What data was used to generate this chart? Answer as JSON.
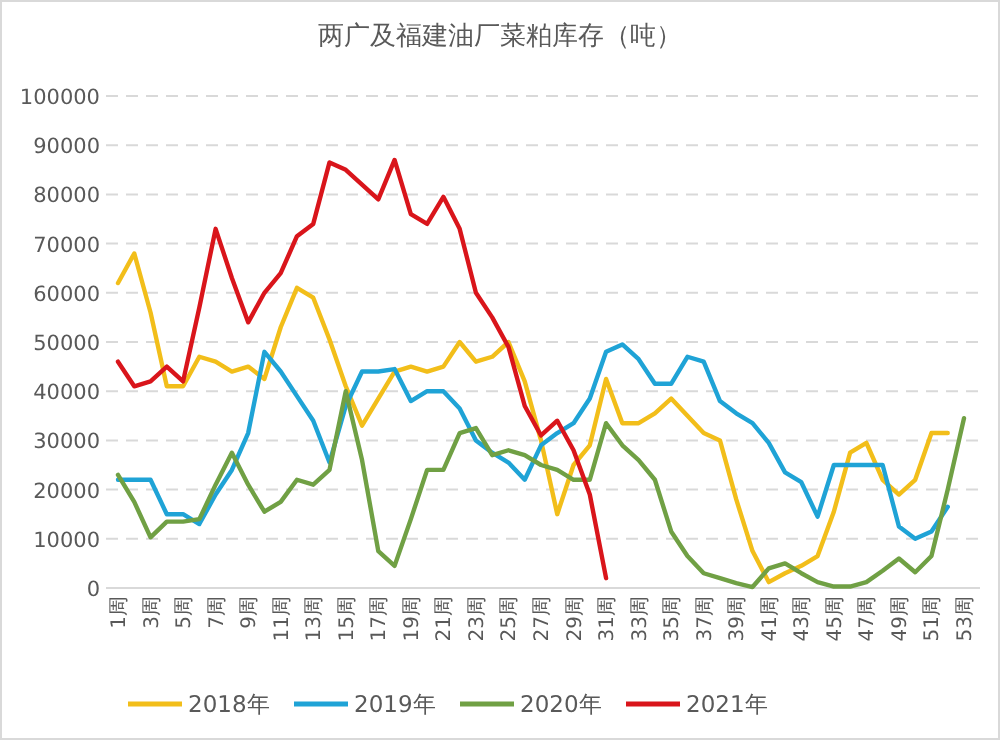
{
  "chart_data": {
    "type": "line",
    "title": "两广及福建油厂菜粕库存（吨）",
    "categories": [
      "1周",
      null,
      "3周",
      null,
      "5周",
      null,
      "7周",
      null,
      "9周",
      null,
      "11周",
      null,
      "13周",
      null,
      "15周",
      null,
      "17周",
      null,
      "19周",
      null,
      "21周",
      null,
      "23周",
      null,
      "25周",
      null,
      "27周",
      null,
      "29周",
      null,
      "31周",
      null,
      "33周",
      null,
      "35周",
      null,
      "37周",
      null,
      "39周",
      null,
      "41周",
      null,
      "43周",
      null,
      "45周",
      null,
      "47周",
      null,
      "49周",
      null,
      "51周",
      null,
      "53周"
    ],
    "ylim": [
      0,
      100000
    ],
    "yticks": [
      0,
      10000,
      20000,
      30000,
      40000,
      50000,
      60000,
      70000,
      80000,
      90000,
      100000
    ],
    "grid": "y",
    "legend": "bottom",
    "series": [
      {
        "name": "2018年",
        "color": "#f2be1a",
        "values": [
          62000,
          68000,
          56000,
          41000,
          41000,
          47000,
          46000,
          44000,
          45000,
          42500,
          53000,
          61000,
          59000,
          50500,
          41000,
          33000,
          38500,
          44000,
          45000,
          44000,
          45000,
          50000,
          46000,
          47000,
          50000,
          42000,
          30000,
          15000,
          25000,
          29000,
          42500,
          33500,
          33500,
          35500,
          38500,
          35000,
          31500,
          30000,
          18000,
          7500,
          1200,
          3000,
          4500,
          6500,
          15500,
          27500,
          29500,
          22000,
          19000,
          22000,
          31500,
          31500,
          null
        ]
      },
      {
        "name": "2019年",
        "color": "#1fa3d6",
        "values": [
          22000,
          22000,
          22000,
          15000,
          15000,
          13000,
          19000,
          24000,
          31500,
          48000,
          44000,
          39000,
          34000,
          25500,
          37000,
          44000,
          44000,
          44500,
          38000,
          40000,
          40000,
          36500,
          30000,
          27500,
          25500,
          22000,
          29000,
          31500,
          33500,
          38500,
          48000,
          49500,
          46500,
          41500,
          41500,
          47000,
          46000,
          38000,
          35500,
          33500,
          29500,
          23500,
          21500,
          14500,
          25000,
          25000,
          25000,
          25000,
          12500,
          10000,
          11500,
          16500,
          null
        ]
      },
      {
        "name": "2020年",
        "color": "#70a044",
        "values": [
          23000,
          17500,
          10300,
          13500,
          13500,
          14000,
          21000,
          27500,
          21000,
          15500,
          17500,
          22000,
          21000,
          24000,
          40000,
          26000,
          7500,
          4500,
          14000,
          24000,
          24000,
          31500,
          32500,
          27000,
          28000,
          27000,
          25000,
          24000,
          22000,
          22000,
          33500,
          29000,
          26000,
          22000,
          11500,
          6500,
          3000,
          2000,
          1000,
          200,
          4000,
          5000,
          3000,
          1200,
          300,
          300,
          1200,
          3500,
          6000,
          3200,
          6500,
          20000,
          34500
        ]
      },
      {
        "name": "2021年",
        "color": "#d9151b",
        "values": [
          46000,
          41000,
          42000,
          45000,
          42000,
          57000,
          73000,
          63000,
          54000,
          60000,
          64000,
          71500,
          74000,
          86500,
          85000,
          82000,
          79000,
          87000,
          76000,
          74000,
          79500,
          73000,
          60000,
          55000,
          49000,
          37000,
          31000,
          34000,
          28000,
          19000,
          2000,
          null,
          null,
          null,
          null,
          null,
          null,
          null,
          null,
          null,
          null,
          null,
          null,
          null,
          null,
          null,
          null,
          null,
          null,
          null,
          null,
          null,
          null
        ]
      }
    ]
  }
}
